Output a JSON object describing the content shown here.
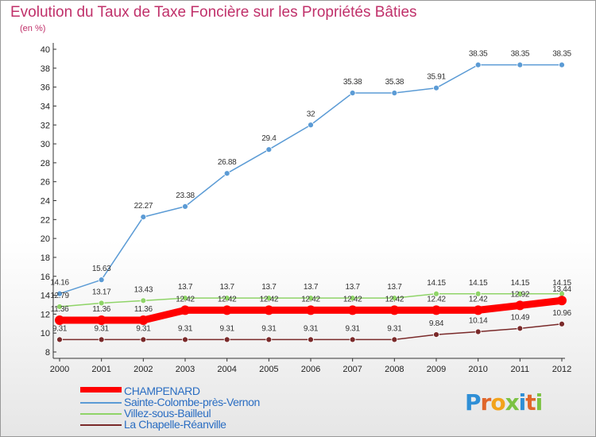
{
  "title": "Evolution du Taux de Taxe Foncière sur les Propriétés Bâties",
  "unit": "(en %)",
  "brand": "Proxiti",
  "chart_data": {
    "type": "line",
    "x": [
      "2000",
      "2001",
      "2002",
      "2003",
      "2004",
      "2005",
      "2006",
      "2007",
      "2008",
      "2009",
      "2010",
      "2011",
      "2012"
    ],
    "ylim": [
      8,
      40
    ],
    "yticks": [
      8,
      10,
      12,
      14,
      16,
      18,
      20,
      22,
      24,
      26,
      28,
      30,
      32,
      34,
      36,
      38,
      40
    ],
    "grid": false,
    "legend_position": "bottom-left",
    "series": [
      {
        "name": "CHAMPENARD",
        "color": "#ff0000",
        "values": [
          11.36,
          11.36,
          11.36,
          12.42,
          12.42,
          12.42,
          12.42,
          12.42,
          12.42,
          12.42,
          12.42,
          12.92,
          13.44
        ],
        "labels": [
          "11.36",
          "11.36",
          "11.36",
          "12.42",
          "12.42",
          "12.42",
          "12.42",
          "12.42",
          "12.42",
          "12.42",
          "12.42",
          "12.92",
          "13.44"
        ]
      },
      {
        "name": "Sainte-Colombe-près-Vernon",
        "color": "#5b9bd5",
        "values": [
          14.16,
          15.63,
          22.27,
          23.38,
          26.88,
          29.4,
          32,
          35.38,
          35.38,
          35.91,
          38.35,
          38.35,
          38.35
        ],
        "labels": [
          "14.16",
          "15.63",
          "22.27",
          "23.38",
          "26.88",
          "29.4",
          "32",
          "35.38",
          "35.38",
          "35.91",
          "38.35",
          "38.35",
          "38.35"
        ]
      },
      {
        "name": "Villez-sous-Bailleul",
        "color": "#8fd468",
        "values": [
          12.79,
          13.17,
          13.43,
          13.7,
          13.7,
          13.7,
          13.7,
          13.7,
          13.7,
          14.15,
          14.15,
          14.15,
          14.15
        ],
        "labels": [
          "12.79",
          "13.17",
          "13.43",
          "13.7",
          "13.7",
          "13.7",
          "13.7",
          "13.7",
          "13.7",
          "14.15",
          "14.15",
          "14.15",
          "14.15"
        ]
      },
      {
        "name": "La Chapelle-Réanville",
        "color": "#7a2a2a",
        "values": [
          9.31,
          9.31,
          9.31,
          9.31,
          9.31,
          9.31,
          9.31,
          9.31,
          9.31,
          9.84,
          10.14,
          10.49,
          10.96
        ],
        "labels": [
          "9.31",
          "9.31",
          "9.31",
          "9.31",
          "9.31",
          "9.31",
          "9.31",
          "9.31",
          "9.31",
          "9.84",
          "10.14",
          "10.49",
          "10.96"
        ]
      }
    ]
  }
}
